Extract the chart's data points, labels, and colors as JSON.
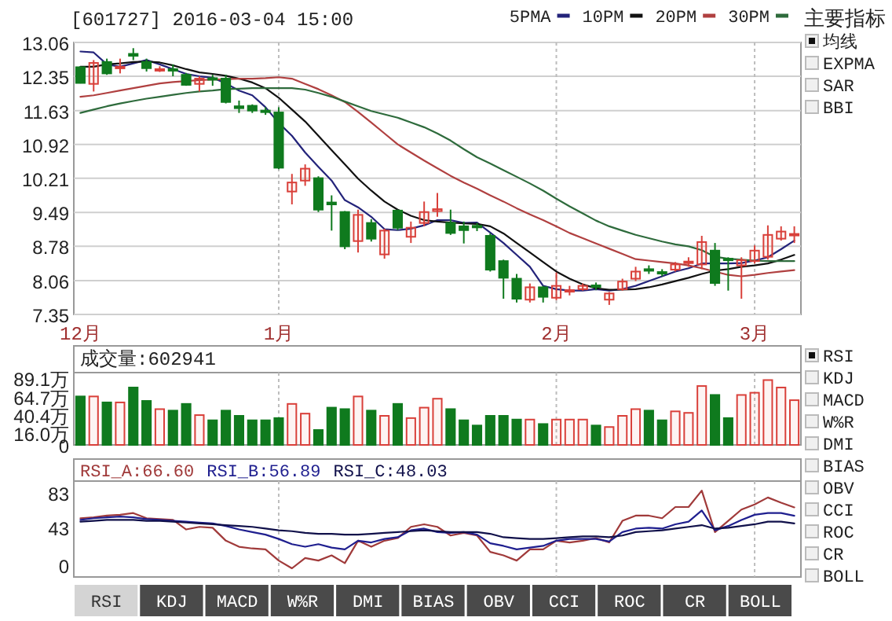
{
  "chart_data": [
    {
      "type": "candlestick",
      "title": "[601727] 2016-03-04 15:00",
      "categories": [
        "12月",
        null,
        null,
        null,
        null,
        null,
        null,
        null,
        null,
        null,
        null,
        null,
        null,
        null,
        null,
        "1月",
        null,
        null,
        null,
        null,
        null,
        null,
        null,
        null,
        null,
        null,
        null,
        null,
        null,
        null,
        null,
        null,
        null,
        null,
        null,
        null,
        "2月",
        null,
        null,
        null,
        null,
        null,
        null,
        null,
        null,
        null,
        null,
        null,
        null,
        null,
        null,
        "3月",
        null,
        null,
        null
      ],
      "ohlc": [
        [
          12.54,
          12.56,
          12.2,
          12.21
        ],
        [
          12.19,
          12.69,
          12.03,
          12.63
        ],
        [
          12.65,
          12.72,
          12.38,
          12.41
        ],
        [
          12.52,
          12.72,
          12.41,
          12.55
        ],
        [
          12.82,
          12.94,
          12.69,
          12.78
        ],
        [
          12.65,
          12.72,
          12.45,
          12.52
        ],
        [
          12.48,
          12.56,
          12.44,
          12.5
        ],
        [
          12.5,
          12.6,
          12.35,
          12.48
        ],
        [
          12.38,
          12.42,
          12.15,
          12.17
        ],
        [
          12.19,
          12.35,
          12.03,
          12.3
        ],
        [
          12.31,
          12.38,
          12.15,
          12.28
        ],
        [
          12.3,
          12.38,
          11.78,
          11.81
        ],
        [
          11.72,
          11.84,
          11.58,
          11.68
        ],
        [
          11.73,
          11.76,
          11.58,
          11.63
        ],
        [
          11.63,
          11.7,
          11.54,
          11.61
        ],
        [
          11.59,
          11.7,
          10.4,
          10.43
        ],
        [
          9.93,
          10.3,
          9.66,
          10.12
        ],
        [
          10.16,
          10.5,
          10.05,
          10.41
        ],
        [
          10.21,
          10.25,
          9.5,
          9.55
        ],
        [
          9.7,
          9.85,
          9.11,
          9.66
        ],
        [
          9.5,
          9.52,
          8.72,
          8.78
        ],
        [
          8.89,
          9.55,
          8.65,
          9.44
        ],
        [
          9.27,
          9.35,
          8.88,
          8.94
        ],
        [
          8.61,
          9.15,
          8.52,
          9.11
        ],
        [
          9.53,
          9.55,
          9.12,
          9.17
        ],
        [
          8.98,
          9.3,
          8.85,
          9.17
        ],
        [
          9.27,
          9.72,
          9.2,
          9.5
        ],
        [
          9.52,
          9.9,
          9.4,
          9.56
        ],
        [
          9.27,
          9.55,
          9.02,
          9.06
        ],
        [
          9.2,
          9.3,
          8.84,
          9.12
        ],
        [
          9.21,
          9.27,
          9.1,
          9.19
        ],
        [
          9.0,
          9.05,
          8.25,
          8.29
        ],
        [
          8.47,
          8.5,
          7.68,
          8.12
        ],
        [
          8.1,
          8.2,
          7.6,
          7.68
        ],
        [
          7.66,
          8.0,
          7.6,
          7.92
        ],
        [
          7.92,
          7.95,
          7.6,
          7.72
        ],
        [
          7.7,
          8.23,
          7.65,
          7.95
        ],
        [
          7.84,
          7.95,
          7.75,
          7.86
        ],
        [
          7.88,
          8.0,
          7.85,
          7.95
        ],
        [
          7.96,
          8.02,
          7.86,
          7.94
        ],
        [
          7.66,
          7.82,
          7.55,
          7.79
        ],
        [
          7.88,
          8.1,
          7.85,
          8.04
        ],
        [
          8.1,
          8.35,
          8.05,
          8.25
        ],
        [
          8.3,
          8.38,
          8.2,
          8.28
        ],
        [
          8.24,
          8.3,
          8.15,
          8.22
        ],
        [
          8.29,
          8.45,
          8.25,
          8.4
        ],
        [
          8.44,
          8.55,
          8.35,
          8.46
        ],
        [
          8.4,
          9.0,
          8.3,
          8.87
        ],
        [
          8.69,
          8.85,
          7.95,
          8.01
        ],
        [
          8.52,
          8.55,
          7.85,
          8.5
        ],
        [
          8.38,
          8.55,
          7.68,
          8.49
        ],
        [
          8.47,
          8.8,
          8.42,
          8.69
        ],
        [
          8.56,
          9.22,
          8.5,
          9.02
        ],
        [
          8.94,
          9.2,
          8.9,
          9.09
        ],
        [
          9.02,
          9.2,
          8.85,
          9.04
        ]
      ],
      "colors": [
        "#0f7a1e",
        "#d9403a",
        "#0f7a1e",
        "#d9403a",
        "#0f7a1e",
        "#0f7a1e",
        "#d9403a",
        "#0f7a1e",
        "#0f7a1e",
        "#d9403a",
        "#0f7a1e",
        "#0f7a1e",
        "#0f7a1e",
        "#0f7a1e",
        "#0f7a1e",
        "#0f7a1e",
        "#d9403a",
        "#d9403a",
        "#0f7a1e",
        "#0f7a1e",
        "#0f7a1e",
        "#d9403a",
        "#0f7a1e",
        "#d9403a",
        "#0f7a1e",
        "#d9403a",
        "#d9403a",
        "#d9403a",
        "#0f7a1e",
        "#0f7a1e",
        "#0f7a1e",
        "#0f7a1e",
        "#0f7a1e",
        "#0f7a1e",
        "#d9403a",
        "#0f7a1e",
        "#d9403a",
        "#d9403a",
        "#d9403a",
        "#0f7a1e",
        "#d9403a",
        "#d9403a",
        "#d9403a",
        "#0f7a1e",
        "#0f7a1e",
        "#d9403a",
        "#d9403a",
        "#d9403a",
        "#0f7a1e",
        "#0f7a1e",
        "#d9403a",
        "#d9403a",
        "#d9403a",
        "#d9403a",
        "#d9403a"
      ],
      "series": [
        {
          "name": "5PMA",
          "type": "line",
          "color": "#23237a",
          "values": [
            12.87,
            12.85,
            12.6,
            12.55,
            12.62,
            12.69,
            12.6,
            12.5,
            12.4,
            12.35,
            12.32,
            12.2,
            12.05,
            11.95,
            11.7,
            11.37,
            11.1,
            10.75,
            10.45,
            10.16,
            9.75,
            9.6,
            9.4,
            9.14,
            9.12,
            9.15,
            9.22,
            9.33,
            9.33,
            9.27,
            9.28,
            9.07,
            8.85,
            8.6,
            8.35,
            7.95,
            7.88,
            7.85,
            7.85,
            7.88,
            7.85,
            7.88,
            7.95,
            8.05,
            8.15,
            8.25,
            8.32,
            8.42,
            8.42,
            8.42,
            8.43,
            8.48,
            8.55,
            8.72,
            8.9
          ]
        },
        {
          "name": "10PM",
          "type": "line",
          "color": "#111111",
          "values": [
            12.55,
            12.55,
            12.6,
            12.62,
            12.65,
            12.66,
            12.64,
            12.58,
            12.5,
            12.43,
            12.4,
            12.36,
            12.3,
            12.22,
            12.1,
            11.9,
            11.65,
            11.4,
            11.1,
            10.8,
            10.5,
            10.2,
            9.95,
            9.72,
            9.55,
            9.42,
            9.33,
            9.3,
            9.28,
            9.26,
            9.25,
            9.2,
            9.05,
            8.85,
            8.65,
            8.45,
            8.25,
            8.1,
            7.98,
            7.9,
            7.87,
            7.87,
            7.88,
            7.92,
            7.98,
            8.05,
            8.12,
            8.2,
            8.27,
            8.3,
            8.35,
            8.38,
            8.42,
            8.5,
            8.6
          ]
        },
        {
          "name": "20PM",
          "type": "line",
          "color": "#b04040",
          "values": [
            11.92,
            11.95,
            12.0,
            12.05,
            12.1,
            12.15,
            12.2,
            12.23,
            12.25,
            12.27,
            12.28,
            12.29,
            12.3,
            12.3,
            12.31,
            12.33,
            12.3,
            12.19,
            12.08,
            11.95,
            11.81,
            11.6,
            11.38,
            11.15,
            10.92,
            10.75,
            10.58,
            10.42,
            10.26,
            10.12,
            9.99,
            9.85,
            9.72,
            9.58,
            9.45,
            9.33,
            9.2,
            9.06,
            8.95,
            8.84,
            8.73,
            8.62,
            8.51,
            8.48,
            8.45,
            8.42,
            8.38,
            8.32,
            8.25,
            8.18,
            8.15,
            8.18,
            8.22,
            8.25,
            8.28
          ]
        },
        {
          "name": "30PM",
          "type": "line",
          "color": "#2e6b3c",
          "values": [
            11.58,
            11.65,
            11.72,
            11.78,
            11.83,
            11.88,
            11.92,
            11.96,
            12.0,
            12.03,
            12.05,
            12.08,
            12.09,
            12.1,
            12.1,
            12.1,
            12.1,
            12.07,
            12.0,
            11.92,
            11.82,
            11.72,
            11.62,
            11.55,
            11.48,
            11.38,
            11.28,
            11.15,
            11.0,
            10.82,
            10.65,
            10.52,
            10.38,
            10.24,
            10.1,
            9.95,
            9.78,
            9.62,
            9.47,
            9.32,
            9.2,
            9.11,
            9.02,
            8.95,
            8.88,
            8.82,
            8.78,
            8.7,
            8.56,
            8.52,
            8.5,
            8.48,
            8.47,
            8.47,
            8.47
          ]
        }
      ],
      "ylim": [
        7.35,
        13.06
      ],
      "yticks": [
        7.35,
        8.06,
        8.78,
        9.49,
        10.21,
        10.92,
        11.63,
        12.35,
        13.06
      ],
      "grid": true,
      "legend": "top right"
    },
    {
      "type": "bar",
      "title": "成交量:602941",
      "categories": [
        null,
        null,
        null,
        null,
        null,
        null,
        null,
        null,
        null,
        null,
        null,
        null,
        null,
        null,
        null,
        null,
        null,
        null,
        null,
        null,
        null,
        null,
        null,
        null,
        null,
        null,
        null,
        null,
        null,
        null,
        null,
        null,
        null,
        null,
        null,
        null,
        null,
        null,
        null,
        null,
        null,
        null,
        null,
        null,
        null,
        null,
        null,
        null,
        null,
        null,
        null,
        null,
        null,
        null,
        null
      ],
      "values": [
        65,
        65,
        57,
        57,
        77,
        59,
        48,
        46,
        55,
        40,
        33,
        46,
        39,
        33,
        33,
        36,
        55,
        42,
        20,
        50,
        48,
        65,
        46,
        39,
        55,
        36,
        50,
        62,
        48,
        33,
        26,
        39,
        39,
        34,
        34,
        28,
        34,
        34,
        34,
        26,
        24,
        39,
        48,
        46,
        33,
        45,
        43,
        79,
        67,
        36,
        67,
        70,
        87,
        77,
        60
      ],
      "colors": [
        "#0f7a1e",
        "#d9403a",
        "#0f7a1e",
        "#d9403a",
        "#0f7a1e",
        "#0f7a1e",
        "#d9403a",
        "#0f7a1e",
        "#0f7a1e",
        "#d9403a",
        "#0f7a1e",
        "#0f7a1e",
        "#0f7a1e",
        "#0f7a1e",
        "#0f7a1e",
        "#0f7a1e",
        "#d9403a",
        "#d9403a",
        "#0f7a1e",
        "#0f7a1e",
        "#0f7a1e",
        "#d9403a",
        "#0f7a1e",
        "#d9403a",
        "#0f7a1e",
        "#d9403a",
        "#d9403a",
        "#d9403a",
        "#0f7a1e",
        "#0f7a1e",
        "#0f7a1e",
        "#0f7a1e",
        "#0f7a1e",
        "#0f7a1e",
        "#d9403a",
        "#0f7a1e",
        "#d9403a",
        "#d9403a",
        "#d9403a",
        "#0f7a1e",
        "#d9403a",
        "#d9403a",
        "#d9403a",
        "#0f7a1e",
        "#0f7a1e",
        "#d9403a",
        "#d9403a",
        "#d9403a",
        "#0f7a1e",
        "#0f7a1e",
        "#d9403a",
        "#d9403a",
        "#d9403a",
        "#d9403a",
        "#d9403a"
      ],
      "ylim": [
        0,
        97
      ],
      "yticks": [
        0,
        {
          "value": 16.0,
          "label": "16.0万"
        },
        {
          "value": 40.4,
          "label": "40.4万"
        },
        {
          "value": 64.7,
          "label": "64.7万"
        },
        {
          "value": 89.1,
          "label": "89.1万"
        }
      ],
      "grid": "x",
      "tick_labels": "y"
    },
    {
      "type": "line",
      "categories": [
        null,
        null,
        null,
        null,
        null,
        null,
        null,
        null,
        null,
        null,
        null,
        null,
        null,
        null,
        null,
        null,
        null,
        null,
        null,
        null,
        null,
        null,
        null,
        null,
        null,
        null,
        null,
        null,
        null,
        null,
        null,
        null,
        null,
        null,
        null,
        null,
        null,
        null,
        null,
        null,
        null,
        null,
        null,
        null,
        null,
        null,
        null,
        null,
        null,
        null,
        null,
        null,
        null,
        null,
        null
      ],
      "series": [
        {
          "name": "RSI_A:66.60",
          "color": "#a03a3a",
          "values": [
            54,
            55,
            57,
            58,
            60,
            54,
            53,
            52,
            41,
            44,
            43,
            28,
            21,
            19,
            18,
            5,
            -4,
            8,
            5,
            11,
            2,
            28,
            21,
            28,
            31,
            44,
            47,
            44,
            34,
            37,
            34,
            15,
            11,
            5,
            18,
            18,
            28,
            26,
            28,
            31,
            26,
            51,
            57,
            57,
            54,
            67,
            67,
            86,
            38,
            51,
            64,
            70,
            78,
            72,
            66.6
          ]
        },
        {
          "name": "RSI_B:56.89",
          "color": "#1f1f8f",
          "values": [
            52,
            54,
            55,
            56,
            55,
            53,
            52,
            51,
            50,
            49,
            48,
            45,
            41,
            38,
            35,
            30,
            24,
            21,
            24,
            20,
            18,
            28,
            26,
            30,
            32,
            40,
            42,
            38,
            37,
            38,
            35,
            25,
            22,
            18,
            20,
            22,
            28,
            30,
            30,
            30,
            27,
            38,
            42,
            43,
            42,
            47,
            50,
            63,
            40,
            45,
            52,
            58,
            60,
            60,
            56.89
          ]
        },
        {
          "name": "RSI_C:48.03",
          "color": "#10104a",
          "values": [
            50,
            51,
            52,
            52,
            52,
            51,
            51,
            50,
            49,
            48,
            47,
            46,
            45,
            44,
            42,
            40,
            39,
            37,
            36,
            36,
            35,
            35,
            36,
            37,
            38,
            39,
            40,
            39,
            38,
            38,
            38,
            36,
            32,
            31,
            30,
            30,
            31,
            32,
            33,
            33,
            32,
            34,
            38,
            39,
            40,
            42,
            44,
            46,
            42,
            43,
            45,
            47,
            50,
            50,
            48.03
          ]
        }
      ],
      "ylim": [
        -14,
        97
      ],
      "yticks": [
        0,
        43,
        83
      ],
      "grid": "x",
      "tick_labels": "y",
      "legend": "top left"
    },
    {
      "type": "other",
      "title": "主要指标",
      "annotations": [
        "均线",
        "EXPMA",
        "SAR",
        "BBI"
      ]
    },
    {
      "type": "other",
      "annotations": [
        "RSI",
        "KDJ",
        "MACD",
        "W%R",
        "DMI",
        "BIAS",
        "OBV",
        "CCI",
        "ROC",
        "CR",
        "BOLL"
      ]
    },
    {
      "type": "other",
      "annotations": [
        "RSI",
        "KDJ",
        "MACD",
        "W%R",
        "DMI",
        "BIAS",
        "OBV",
        "CCI",
        "ROC",
        "CR",
        "BOLL"
      ]
    }
  ]
}
